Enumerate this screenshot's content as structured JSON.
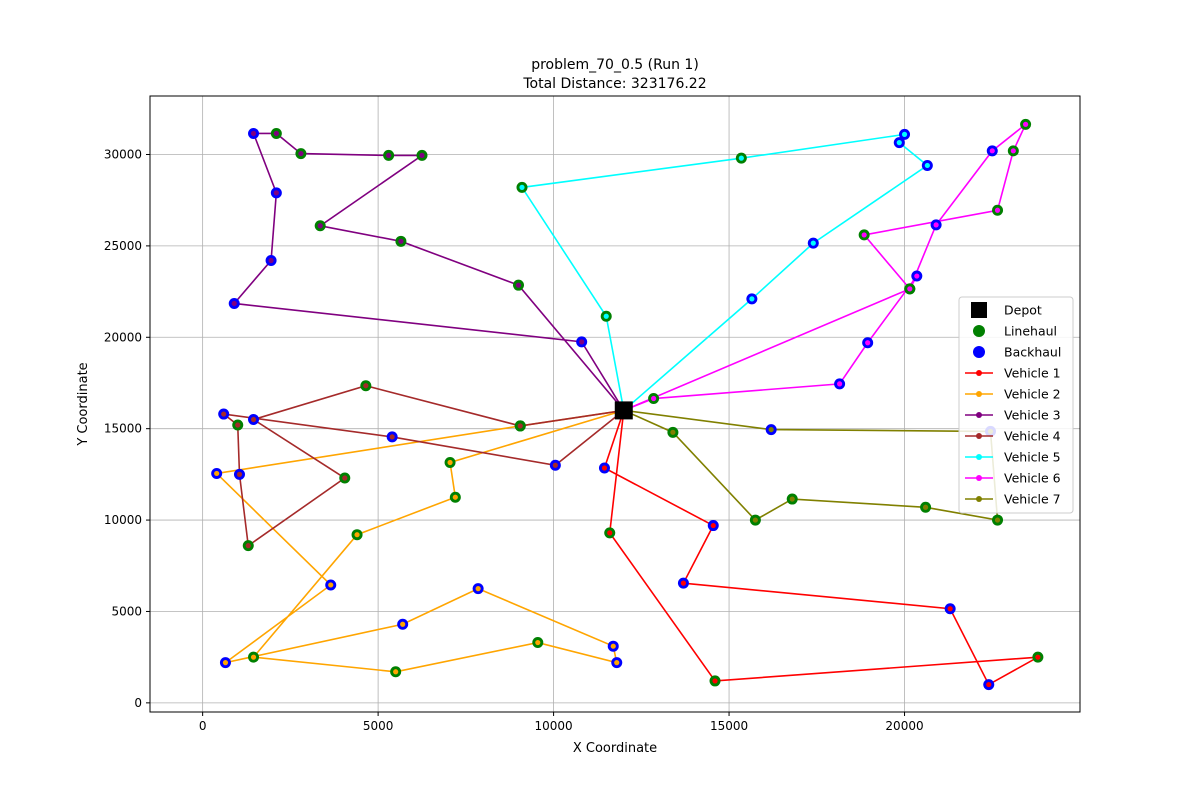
{
  "chart_data": {
    "type": "scatter",
    "title": "problem_70_0.5 (Run 1)",
    "subtitle": "Total Distance: 323176.22",
    "xlabel": "X Coordinate",
    "ylabel": "Y Coordinate",
    "xlim": [
      -1500,
      25000
    ],
    "ylim": [
      -500,
      33200
    ],
    "xticks": [
      0,
      5000,
      10000,
      15000,
      20000
    ],
    "yticks": [
      0,
      5000,
      10000,
      15000,
      20000,
      25000,
      30000
    ],
    "grid": true,
    "legend_position": "center-right",
    "depot": {
      "name": "Depot",
      "x": 12000,
      "y": 16000,
      "color": "#000000"
    },
    "point_types": {
      "linehaul": {
        "name": "Linehaul",
        "color": "#008000"
      },
      "backhaul": {
        "name": "Backhaul",
        "color": "#0000ff"
      }
    },
    "series": [
      {
        "name": "Vehicle 1",
        "color": "#ff0000",
        "points": [
          {
            "x": 12000,
            "y": 16000,
            "t": "depot"
          },
          {
            "x": 11600,
            "y": 9300,
            "t": "L"
          },
          {
            "x": 14600,
            "y": 1200,
            "t": "L"
          },
          {
            "x": 23800,
            "y": 2500,
            "t": "L"
          },
          {
            "x": 22400,
            "y": 1000,
            "t": "B"
          },
          {
            "x": 21300,
            "y": 5150,
            "t": "B"
          },
          {
            "x": 13700,
            "y": 6550,
            "t": "B"
          },
          {
            "x": 14550,
            "y": 9700,
            "t": "B"
          },
          {
            "x": 11450,
            "y": 12850,
            "t": "B"
          },
          {
            "x": 12000,
            "y": 16000,
            "t": "depot"
          }
        ]
      },
      {
        "name": "Vehicle 2",
        "color": "#ffa500",
        "points": [
          {
            "x": 12000,
            "y": 16000,
            "t": "depot"
          },
          {
            "x": 7050,
            "y": 13150,
            "t": "L"
          },
          {
            "x": 7200,
            "y": 11250,
            "t": "L"
          },
          {
            "x": 4400,
            "y": 9200,
            "t": "L"
          },
          {
            "x": 1450,
            "y": 2500,
            "t": "L"
          },
          {
            "x": 5500,
            "y": 1700,
            "t": "L"
          },
          {
            "x": 9550,
            "y": 3300,
            "t": "L"
          },
          {
            "x": 11800,
            "y": 2200,
            "t": "B"
          },
          {
            "x": 11700,
            "y": 3100,
            "t": "B"
          },
          {
            "x": 7850,
            "y": 6250,
            "t": "B"
          },
          {
            "x": 5700,
            "y": 4300,
            "t": "B"
          },
          {
            "x": 650,
            "y": 2200,
            "t": "B"
          },
          {
            "x": 3650,
            "y": 6450,
            "t": "B"
          },
          {
            "x": 400,
            "y": 12550,
            "t": "B"
          },
          {
            "x": 9050,
            "y": 15150,
            "t": "L"
          },
          {
            "x": 12000,
            "y": 16000,
            "t": "depot"
          }
        ]
      },
      {
        "name": "Vehicle 3",
        "color": "#800080",
        "points": [
          {
            "x": 12000,
            "y": 16000,
            "t": "depot"
          },
          {
            "x": 9000,
            "y": 22850,
            "t": "L"
          },
          {
            "x": 5650,
            "y": 25250,
            "t": "L"
          },
          {
            "x": 3350,
            "y": 26100,
            "t": "L"
          },
          {
            "x": 6250,
            "y": 29950,
            "t": "L"
          },
          {
            "x": 5300,
            "y": 29950,
            "t": "L"
          },
          {
            "x": 2800,
            "y": 30050,
            "t": "L"
          },
          {
            "x": 2100,
            "y": 31150,
            "t": "L"
          },
          {
            "x": 1450,
            "y": 31150,
            "t": "B"
          },
          {
            "x": 2100,
            "y": 27900,
            "t": "B"
          },
          {
            "x": 1950,
            "y": 24200,
            "t": "B"
          },
          {
            "x": 900,
            "y": 21850,
            "t": "B"
          },
          {
            "x": 10800,
            "y": 19750,
            "t": "B"
          },
          {
            "x": 12000,
            "y": 16000,
            "t": "depot"
          }
        ]
      },
      {
        "name": "Vehicle 4",
        "color": "#a52a2a",
        "points": [
          {
            "x": 12000,
            "y": 16000,
            "t": "depot"
          },
          {
            "x": 9050,
            "y": 15150,
            "t": "L"
          },
          {
            "x": 4650,
            "y": 17350,
            "t": "L"
          },
          {
            "x": 1450,
            "y": 15500,
            "t": "B"
          },
          {
            "x": 4050,
            "y": 12300,
            "t": "L"
          },
          {
            "x": 1300,
            "y": 8600,
            "t": "L"
          },
          {
            "x": 1050,
            "y": 12500,
            "t": "B"
          },
          {
            "x": 1000,
            "y": 15200,
            "t": "L"
          },
          {
            "x": 600,
            "y": 15800,
            "t": "B"
          },
          {
            "x": 5400,
            "y": 14550,
            "t": "B"
          },
          {
            "x": 10050,
            "y": 13000,
            "t": "B"
          },
          {
            "x": 12000,
            "y": 16000,
            "t": "depot"
          }
        ]
      },
      {
        "name": "Vehicle 5",
        "color": "#00ffff",
        "points": [
          {
            "x": 12000,
            "y": 16000,
            "t": "depot"
          },
          {
            "x": 11500,
            "y": 21150,
            "t": "L"
          },
          {
            "x": 9100,
            "y": 28200,
            "t": "L"
          },
          {
            "x": 15350,
            "y": 29800,
            "t": "L"
          },
          {
            "x": 20000,
            "y": 31100,
            "t": "B"
          },
          {
            "x": 19850,
            "y": 30650,
            "t": "B"
          },
          {
            "x": 20650,
            "y": 29400,
            "t": "B"
          },
          {
            "x": 17400,
            "y": 25150,
            "t": "B"
          },
          {
            "x": 15650,
            "y": 22100,
            "t": "B"
          },
          {
            "x": 12000,
            "y": 16000,
            "t": "depot"
          }
        ]
      },
      {
        "name": "Vehicle 6",
        "color": "#ff00ff",
        "points": [
          {
            "x": 12000,
            "y": 16000,
            "t": "depot"
          },
          {
            "x": 12850,
            "y": 16650,
            "t": "L"
          },
          {
            "x": 18150,
            "y": 17450,
            "t": "B"
          },
          {
            "x": 18950,
            "y": 19700,
            "t": "B"
          },
          {
            "x": 20350,
            "y": 23350,
            "t": "B"
          },
          {
            "x": 20150,
            "y": 22650,
            "t": "L"
          },
          {
            "x": 18850,
            "y": 25600,
            "t": "L"
          },
          {
            "x": 22650,
            "y": 26950,
            "t": "L"
          },
          {
            "x": 23100,
            "y": 30200,
            "t": "L"
          },
          {
            "x": 23450,
            "y": 31650,
            "t": "L"
          },
          {
            "x": 22500,
            "y": 30200,
            "t": "B"
          },
          {
            "x": 20900,
            "y": 26150,
            "t": "B"
          },
          {
            "x": 20150,
            "y": 22650,
            "t": "L"
          },
          {
            "x": 12000,
            "y": 16000,
            "t": "depot"
          }
        ]
      },
      {
        "name": "Vehicle 7",
        "color": "#808000",
        "points": [
          {
            "x": 12000,
            "y": 16000,
            "t": "depot"
          },
          {
            "x": 13400,
            "y": 14800,
            "t": "L"
          },
          {
            "x": 15750,
            "y": 10000,
            "t": "L"
          },
          {
            "x": 16800,
            "y": 11150,
            "t": "L"
          },
          {
            "x": 20600,
            "y": 10700,
            "t": "L"
          },
          {
            "x": 22650,
            "y": 10000,
            "t": "L"
          },
          {
            "x": 22450,
            "y": 14850,
            "t": "B"
          },
          {
            "x": 16200,
            "y": 14950,
            "t": "B"
          },
          {
            "x": 12000,
            "y": 16000,
            "t": "depot"
          }
        ]
      }
    ]
  }
}
